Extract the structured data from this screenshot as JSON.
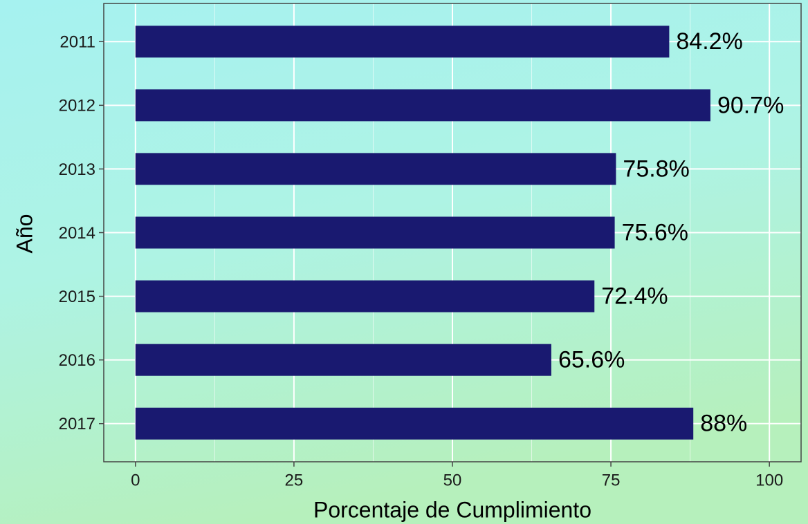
{
  "chart_data": {
    "type": "bar",
    "orientation": "horizontal",
    "x_label": "Porcentaje de Cumplimiento",
    "y_label": "Año",
    "categories": [
      "2011",
      "2012",
      "2013",
      "2014",
      "2015",
      "2016",
      "2017"
    ],
    "values": [
      84.2,
      90.7,
      75.8,
      75.6,
      72.4,
      65.6,
      88
    ],
    "value_labels": [
      "84.2%",
      "90.7%",
      "75.8%",
      "75.6%",
      "72.4%",
      "65.6%",
      "88%"
    ],
    "color": "#191970",
    "xlim": [
      -5,
      105
    ],
    "xticks": [
      0,
      25,
      50,
      75,
      100
    ],
    "grid": true
  }
}
